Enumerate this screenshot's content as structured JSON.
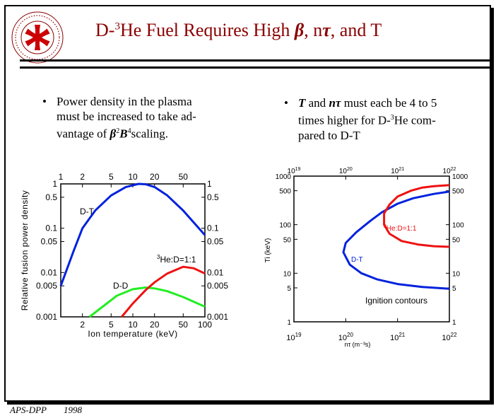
{
  "title": {
    "prefix": "D-",
    "sup": "3",
    "rest": "He Fuel Requires High ",
    "beta": "β",
    "mid": ", n",
    "tau": "τ",
    "end": ", and T"
  },
  "logo": {
    "ring_text": "FUSION TECHNOLOGY INSTITUTE WISCONSIN"
  },
  "bullets": {
    "left": {
      "marker": "•",
      "line1": "Power density in the plasma",
      "line2": "must be increased to take ad-",
      "line3_prefix": "vantage of ",
      "beta": "β",
      "sup2": "2",
      "B": "B",
      "sup4": "4",
      "line3_suffix": "scaling."
    },
    "right": {
      "marker": "•",
      "T": "T",
      "and": " and ",
      "ntau": "nτ",
      "rest1": " must each be 4 to 5",
      "line2_prefix": "times higher for D-",
      "sup3": "3",
      "line2_suffix": "He com-",
      "line3": "pared to D-T"
    }
  },
  "footer": {
    "org": "APS-DPP",
    "year": "1998"
  },
  "colors": {
    "title": "#8b0000",
    "dt": "#0022dd",
    "dhe3": "#ee1111",
    "dd": "#22ee22"
  },
  "chart_data": [
    {
      "type": "line",
      "xlabel": "Ion temperature (keV)",
      "ylabel": "Relative fusion power density",
      "xscale": "log",
      "yscale": "log",
      "xlim": [
        1,
        100
      ],
      "ylim": [
        0.001,
        1
      ],
      "top_ticks": [
        "1",
        "2",
        "5",
        "10",
        "20",
        "50"
      ],
      "bottom_ticks": [
        "2",
        "5",
        "10",
        "20",
        "50",
        "100"
      ],
      "left_ticks": [
        "1",
        "0.5",
        "0.1",
        "0.05",
        "0.01",
        "0.005",
        "0.001"
      ],
      "right_ticks": [
        "1",
        "0.5",
        "0.1",
        "0.05",
        "0.01",
        "0.005",
        "0.001"
      ],
      "series": [
        {
          "name": "D-T",
          "color": "#0022dd",
          "x": [
            1,
            1.5,
            2,
            3,
            5,
            8,
            12,
            15,
            20,
            30,
            50,
            100
          ],
          "y": [
            0.005,
            0.03,
            0.1,
            0.25,
            0.55,
            0.85,
            1.0,
            0.98,
            0.85,
            0.55,
            0.25,
            0.07
          ]
        },
        {
          "name": "D-D",
          "color": "#22ee22",
          "x": [
            2.5,
            4,
            6,
            10,
            15,
            20,
            30,
            50,
            100
          ],
          "y": [
            0.001,
            0.0018,
            0.003,
            0.0042,
            0.0046,
            0.0044,
            0.0038,
            0.0028,
            0.0017
          ]
        },
        {
          "name": "3He:D=1:1",
          "label_sup": "3",
          "label_main": "He:D=1:1",
          "color": "#ee1111",
          "x": [
            7,
            10,
            15,
            20,
            30,
            50,
            70,
            100
          ],
          "y": [
            0.001,
            0.002,
            0.004,
            0.006,
            0.0095,
            0.0135,
            0.0125,
            0.0095
          ]
        }
      ]
    },
    {
      "type": "line",
      "xlabel": "nτ (m⁻³s)",
      "ylabel": "Ti (keV)",
      "xscale": "log",
      "yscale": "log",
      "xlim": [
        1e+19,
        1e+22
      ],
      "ylim": [
        1,
        1000
      ],
      "top_ticks": [
        "10",
        "10",
        "10",
        "10"
      ],
      "top_exps": [
        "19",
        "20",
        "21",
        "22"
      ],
      "bottom_ticks": [
        "10",
        "10",
        "10",
        "10"
      ],
      "bottom_exps": [
        "19",
        "20",
        "21",
        "22"
      ],
      "left_ticks": [
        "1000",
        "500",
        "100",
        "50",
        "10",
        "5",
        "1"
      ],
      "right_ticks": [
        "1000",
        "500",
        "100",
        "50",
        "10",
        "5",
        "1"
      ],
      "annotation": "Ignition contours",
      "series": [
        {
          "name": "D-T",
          "color": "#0022dd",
          "x": [
            1e+22,
            5e+21,
            2e+21,
            1e+21,
            5e+20,
            3e+20,
            1.6e+20,
            1e+20,
            9e+19,
            1.2e+20,
            2e+20,
            4e+20,
            1e+21,
            3e+21,
            1e+22
          ],
          "y": [
            480,
            430,
            350,
            270,
            180,
            120,
            70,
            42,
            27,
            15,
            10,
            7.5,
            6,
            5.2,
            4.8
          ]
        },
        {
          "name": "3He:D=1:1",
          "label_sup": "3",
          "label_main": "He:D=1:1",
          "color": "#ee1111",
          "x": [
            1e+22,
            5e+21,
            3e+21,
            1.8e+21,
            1e+21,
            7e+20,
            5.5e+20,
            5.5e+20,
            7e+20,
            1.2e+21,
            2.5e+21,
            5e+21,
            1e+22
          ],
          "y": [
            650,
            620,
            580,
            500,
            380,
            260,
            170,
            100,
            65,
            46,
            39,
            36,
            35
          ]
        }
      ]
    }
  ]
}
